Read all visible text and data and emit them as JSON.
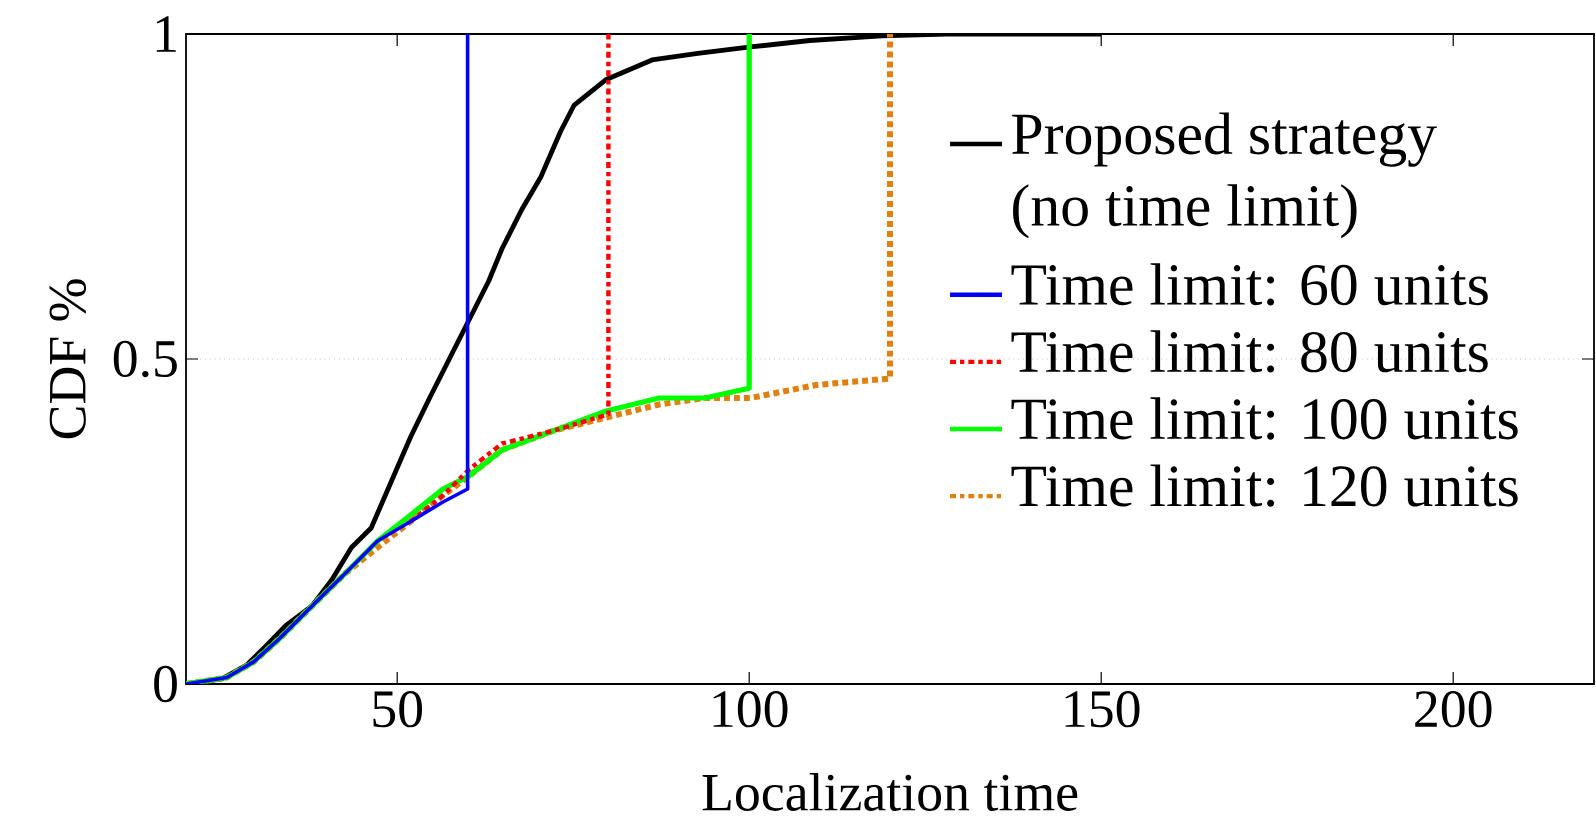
{
  "chart_data": {
    "type": "line",
    "xlabel": "Localization time",
    "ylabel": "CDF %",
    "xlim": [
      20,
      220
    ],
    "xticks": [
      50,
      100,
      150,
      200
    ],
    "ylim": [
      0,
      1
    ],
    "yticks": [
      0,
      0.5,
      1
    ],
    "grid": "y",
    "legend": "right",
    "marker": "none",
    "series": [
      {
        "name": "Proposed strategy (no time limit)",
        "color": "#000000",
        "line_style": "solid",
        "x": [
          20,
          25.1,
          28.6,
          31.4,
          34.2,
          37.9,
          40.7,
          43.5,
          46.3,
          49.1,
          51.9,
          54.6,
          57.4,
          60.2,
          63.0,
          64.9,
          67.7,
          70.4,
          73.2,
          75.1,
          79.7,
          86.2,
          92.7,
          100.2,
          108.6,
          118.8,
          128,
          150
        ],
        "values": [
          0,
          0.008,
          0.029,
          0.059,
          0.09,
          0.12,
          0.16,
          0.21,
          0.24,
          0.31,
          0.38,
          0.44,
          0.5,
          0.56,
          0.62,
          0.67,
          0.73,
          0.78,
          0.85,
          0.89,
          0.93,
          0.96,
          0.97,
          0.98,
          0.99,
          0.997,
          1,
          1
        ]
      },
      {
        "name": "Time limit: 60 units",
        "color": "#0000ff",
        "line_style": "solid",
        "x": [
          20,
          25.8,
          29.6,
          33.3,
          37.9,
          42.6,
          47.2,
          51.9,
          56.5,
          60,
          60
        ],
        "values": [
          0,
          0.01,
          0.034,
          0.07,
          0.12,
          0.17,
          0.22,
          0.25,
          0.28,
          0.3,
          1
        ]
      },
      {
        "name": "Time limit: 80 units",
        "color": "#ff0000",
        "line_style": "dashdot",
        "x": [
          51.9,
          56.5,
          60.2,
          64.9,
          72.3,
          80,
          80
        ],
        "values": [
          0.25,
          0.29,
          0.33,
          0.37,
          0.39,
          0.415,
          1
        ]
      },
      {
        "name": "Time limit: 100 units",
        "color": "#00ff00",
        "line_style": "solid",
        "x": [
          20,
          25.8,
          29.6,
          33.3,
          37.9,
          42.6,
          47.2,
          51.9,
          56.5,
          60.2,
          64.9,
          72.3,
          79.7,
          87.2,
          93.7,
          100,
          100
        ],
        "values": [
          0,
          0.01,
          0.034,
          0.07,
          0.12,
          0.17,
          0.22,
          0.26,
          0.3,
          0.32,
          0.36,
          0.39,
          0.42,
          0.44,
          0.44,
          0.455,
          1
        ]
      },
      {
        "name": "Time limit: 120 units",
        "color": "#e08010",
        "line_style": "dashdot",
        "x": [
          20,
          25.8,
          29.6,
          33.3,
          37.9,
          42.6,
          47.2,
          51.9,
          56.5,
          60.2,
          64.9,
          72.3,
          79.7,
          87.2,
          93.7,
          100.2,
          109.5,
          120,
          120
        ],
        "values": [
          0,
          0.01,
          0.034,
          0.07,
          0.12,
          0.17,
          0.21,
          0.25,
          0.29,
          0.32,
          0.36,
          0.39,
          0.41,
          0.43,
          0.44,
          0.44,
          0.46,
          0.47,
          1
        ]
      }
    ]
  }
}
